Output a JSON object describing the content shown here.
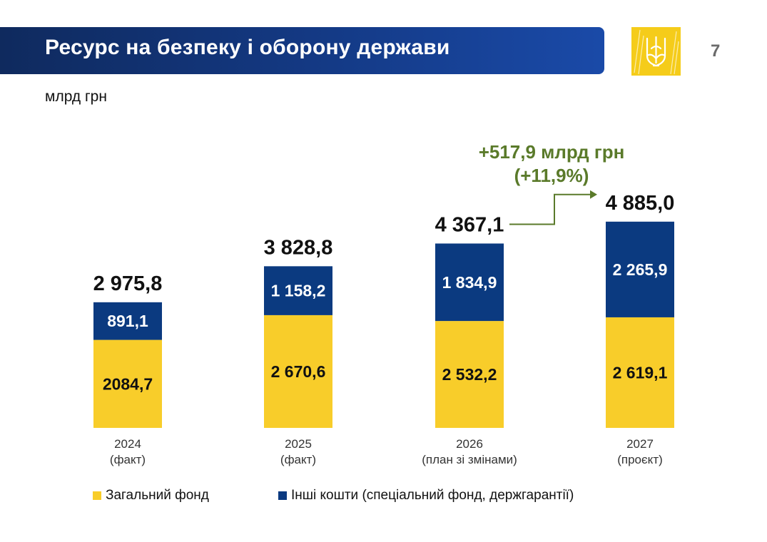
{
  "header": {
    "title": "Ресурс на безпеку і оборону держави",
    "page_number": "7",
    "emblem_icon": "trident-icon",
    "colors": {
      "bar_dark": "#0f2a5e",
      "bar_light": "#1a4aa8",
      "emblem_bg": "#f5cc1a"
    }
  },
  "unit_label": "млрд грн",
  "chart_data": {
    "type": "bar",
    "stacked": true,
    "categories": [
      "2024",
      "2025",
      "2026",
      "2027"
    ],
    "category_notes": [
      "(факт)",
      "(факт)",
      "(план зі змінами)",
      "(проєкт)"
    ],
    "series": [
      {
        "name": "Загальний фонд",
        "color": "#f8cd2a",
        "values": [
          2084.7,
          2670.6,
          2532.2,
          2619.1
        ],
        "labels": [
          "2084,7",
          "2 670,6",
          "2 532,2",
          "2 619,1"
        ]
      },
      {
        "name": "Інші кошти (спеціальний фонд, держгарантії)",
        "color": "#0b3a80",
        "values": [
          891.1,
          1158.2,
          1834.9,
          2265.9
        ],
        "labels": [
          "891,1",
          "1 158,2",
          "1 834,9",
          "2 265,9"
        ]
      }
    ],
    "totals": [
      2975.8,
      3828.8,
      4367.1,
      4885.0
    ],
    "total_labels": [
      "2 975,8",
      "3 828,8",
      "4 367,1",
      "4 885,0"
    ],
    "annotation": {
      "line1": "+517,9 млрд грн",
      "line2": "(+11,9%)",
      "color": "#5a7a2a"
    },
    "legend_position": "bottom",
    "grid": false
  }
}
